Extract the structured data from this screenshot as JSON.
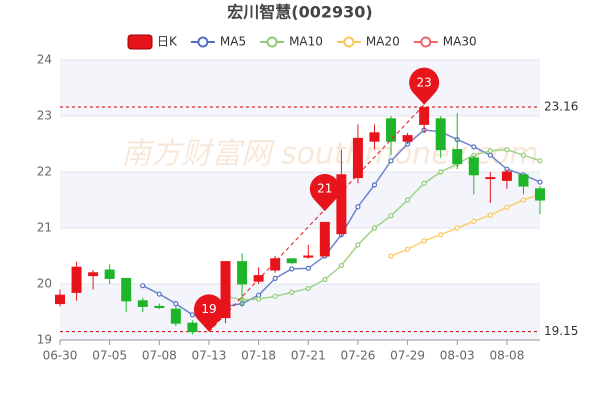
{
  "chart_data": {
    "type": "candlestick",
    "title": "宏川智慧(002930)",
    "watermark": "南方财富网 southmoney.com",
    "categories": [
      "06-30",
      null,
      null,
      "07-05",
      null,
      null,
      "07-08",
      null,
      null,
      "07-13",
      null,
      null,
      "07-18",
      null,
      null,
      "07-21",
      null,
      null,
      "07-26",
      null,
      null,
      "07-29",
      null,
      null,
      "08-03",
      null,
      null,
      "08-08",
      null,
      null
    ],
    "ylim": [
      19,
      24
    ],
    "yticks": [
      19,
      20,
      21,
      22,
      23,
      24
    ],
    "grid": true,
    "up_color": "#e8141b",
    "down_color": "#1fb52a",
    "series": [
      {
        "name": "日K",
        "type": "candle",
        "color": "#e8141b",
        "open": [
          19.65,
          19.85,
          20.15,
          20.25,
          20.1,
          19.7,
          19.6,
          19.55,
          19.3,
          19.4,
          19.4,
          20.4,
          20.05,
          20.25,
          20.45,
          20.48,
          20.5,
          20.9,
          21.9,
          22.55,
          22.95,
          22.55,
          22.85,
          22.95,
          22.4,
          22.25,
          21.9,
          21.85,
          21.95,
          21.7
        ],
        "close": [
          19.8,
          20.3,
          20.2,
          20.1,
          19.7,
          19.6,
          19.58,
          19.3,
          19.15,
          19.25,
          20.4,
          20.0,
          20.15,
          20.45,
          20.38,
          20.5,
          21.1,
          21.95,
          22.6,
          22.7,
          22.55,
          22.65,
          23.15,
          22.4,
          22.15,
          21.95,
          21.9,
          22.0,
          21.75,
          21.5
        ],
        "high": [
          19.9,
          20.4,
          20.25,
          20.35,
          20.1,
          19.75,
          19.65,
          19.6,
          19.35,
          19.45,
          20.4,
          20.55,
          20.3,
          20.5,
          20.45,
          20.7,
          21.1,
          22.4,
          22.85,
          22.85,
          23.0,
          22.7,
          23.16,
          23.0,
          23.05,
          22.3,
          22.0,
          22.05,
          21.95,
          21.75
        ],
        "low": [
          19.6,
          19.7,
          19.9,
          20.0,
          19.5,
          19.5,
          19.55,
          19.25,
          19.1,
          19.15,
          19.3,
          19.6,
          20.0,
          20.2,
          20.35,
          20.45,
          20.5,
          20.85,
          21.8,
          22.4,
          22.3,
          22.5,
          22.7,
          22.25,
          22.05,
          21.6,
          21.45,
          21.7,
          21.6,
          21.25
        ]
      },
      {
        "name": "MA5",
        "type": "ma",
        "color": "#5470c6",
        "values": [
          null,
          null,
          null,
          null,
          null,
          19.97,
          19.82,
          19.65,
          19.45,
          19.38,
          19.6,
          19.65,
          19.8,
          20.1,
          20.27,
          20.28,
          20.5,
          20.88,
          21.38,
          21.77,
          22.2,
          22.5,
          22.75,
          22.72,
          22.58,
          22.45,
          22.3,
          22.05,
          21.95,
          21.82
        ]
      },
      {
        "name": "MA10",
        "type": "ma",
        "color": "#91cc75",
        "values": [
          null,
          null,
          null,
          null,
          null,
          null,
          null,
          null,
          null,
          null,
          19.78,
          19.72,
          19.73,
          19.78,
          19.85,
          19.92,
          20.08,
          20.33,
          20.7,
          21.0,
          21.22,
          21.5,
          21.8,
          22.0,
          22.15,
          22.3,
          22.38,
          22.4,
          22.3,
          22.2
        ]
      },
      {
        "name": "MA20",
        "type": "ma",
        "color": "#fac858",
        "values": [
          null,
          null,
          null,
          null,
          null,
          null,
          null,
          null,
          null,
          null,
          null,
          null,
          null,
          null,
          null,
          null,
          null,
          null,
          null,
          null,
          20.5,
          20.62,
          20.77,
          20.88,
          21.0,
          21.12,
          21.23,
          21.37,
          21.5,
          21.6
        ]
      },
      {
        "name": "MA30",
        "type": "ma",
        "color": "#ee6666",
        "values": [
          null,
          null,
          null,
          null,
          null,
          null,
          null,
          null,
          null,
          null,
          null,
          null,
          null,
          null,
          null,
          null,
          null,
          null,
          null,
          null,
          null,
          null,
          null,
          null,
          null,
          null,
          null,
          null,
          null,
          null
        ]
      }
    ],
    "hlines": [
      23.16,
      19.15
    ],
    "markers": [
      {
        "index": 9,
        "value": 19.15,
        "label": "19"
      },
      {
        "index": 16,
        "value": 21.3,
        "label": "21"
      },
      {
        "index": 22,
        "value": 23.2,
        "label": "23"
      }
    ]
  }
}
